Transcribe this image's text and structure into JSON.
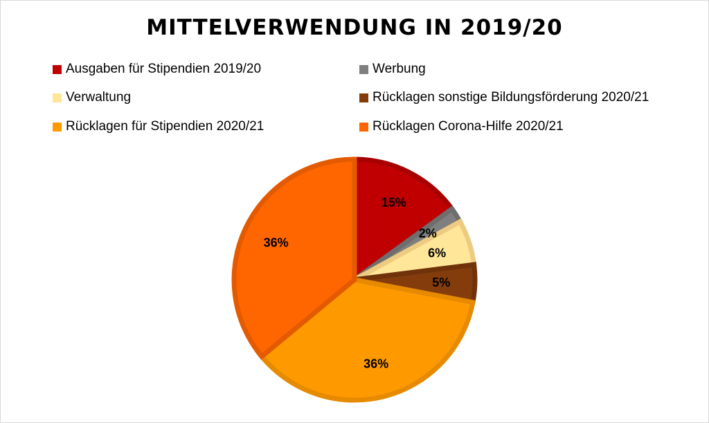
{
  "chart_data": {
    "type": "pie",
    "title": "MITTELVERWENDUNG IN 2019/20",
    "legend_position": "top",
    "start_angle_deg": 0,
    "direction": "clockwise",
    "slices": [
      {
        "label": "Ausgaben für Stipendien 2019/20",
        "value": 15,
        "value_label": "15%",
        "color": "#C00000",
        "border_color": "#A70000"
      },
      {
        "label": "Werbung",
        "value": 2,
        "value_label": "2%",
        "color": "#7F7F7F",
        "border_color": "#6E6E6E"
      },
      {
        "label": "Verwaltung",
        "value": 6,
        "value_label": "6%",
        "color": "#FFE699",
        "border_color": "#EDCB80"
      },
      {
        "label": "Rücklagen sonstige Bildungsförderung 2020/21",
        "value": 5,
        "value_label": "5%",
        "color": "#843C0C",
        "border_color": "#6F320A"
      },
      {
        "label": "Rücklagen für Stipendien 2020/21",
        "value": 36,
        "value_label": "36%",
        "color": "#FF9900",
        "border_color": "#E68A00"
      },
      {
        "label": "Rücklagen Corona-Hilfe 2020/21",
        "value": 36,
        "value_label": "36%",
        "color": "#FF6600",
        "border_color": "#E35A00"
      }
    ]
  }
}
